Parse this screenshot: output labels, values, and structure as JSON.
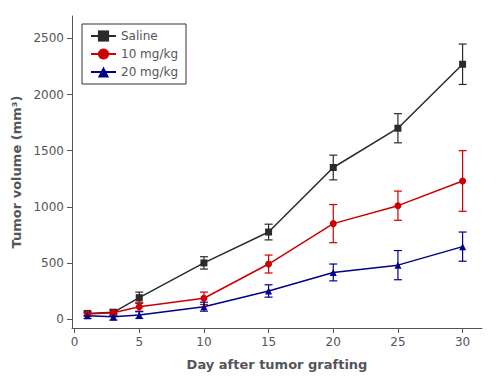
{
  "chart_data": {
    "type": "line",
    "xlabel": "Day after tumor grafting",
    "ylabel": "Tumor volume (mm³)",
    "x": [
      1,
      3,
      5,
      10,
      15,
      20,
      25,
      30
    ],
    "series": [
      {
        "name": "Saline",
        "color": "#2b2b2b",
        "marker": "square",
        "values": [
          50,
          60,
          190,
          500,
          775,
          1350,
          1700,
          2270
        ],
        "errors": [
          20,
          25,
          50,
          55,
          70,
          110,
          130,
          180
        ]
      },
      {
        "name": "10 mg/kg",
        "color": "#cc0000",
        "marker": "circle",
        "values": [
          45,
          55,
          110,
          185,
          490,
          850,
          1010,
          1230
        ],
        "errors": [
          18,
          20,
          40,
          55,
          80,
          170,
          130,
          270
        ]
      },
      {
        "name": "20 mg/kg",
        "color": "#00008B",
        "marker": "triangle",
        "values": [
          30,
          20,
          35,
          110,
          250,
          415,
          480,
          645
        ],
        "errors": [
          25,
          30,
          30,
          40,
          55,
          75,
          130,
          130
        ]
      }
    ],
    "xlim": [
      -0.2,
      31.5
    ],
    "xticks": [
      0,
      5,
      10,
      15,
      20,
      25,
      30
    ],
    "ylim": [
      -80,
      2700
    ],
    "yticks": [
      0,
      500,
      1000,
      1500,
      2000,
      2500
    ],
    "legend": "upper left",
    "grid": false
  }
}
